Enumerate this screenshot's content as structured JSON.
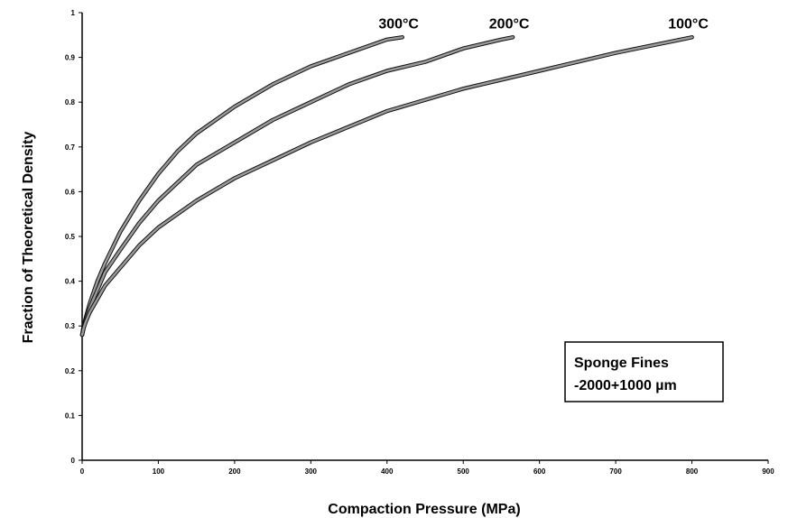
{
  "chart_data": {
    "type": "line",
    "title": "",
    "xlabel": "Compaction Pressure (MPa)",
    "ylabel": "Fraction of Theoretical Density",
    "xlim": [
      0,
      900
    ],
    "ylim": [
      0,
      1
    ],
    "xticks": [
      "0",
      "100",
      "200",
      "300",
      "400",
      "500",
      "600",
      "700",
      "800",
      "900"
    ],
    "yticks": [
      "0",
      "0.1",
      "0.2",
      "0.3",
      "0.4",
      "0.5",
      "0.6",
      "0.7",
      "0.8",
      "0.9",
      "1"
    ],
    "grid": false,
    "legend": "none",
    "annotation": [
      "Sponge Fines",
      "-2000+1000 µm"
    ],
    "series": [
      {
        "name": "300°C",
        "color": "#9a9a9a",
        "x": [
          0,
          2,
          5,
          10,
          20,
          30,
          50,
          75,
          100,
          125,
          150,
          200,
          250,
          300,
          350,
          400,
          420
        ],
        "y": [
          0.28,
          0.3,
          0.32,
          0.35,
          0.4,
          0.44,
          0.51,
          0.58,
          0.64,
          0.69,
          0.73,
          0.79,
          0.84,
          0.88,
          0.91,
          0.94,
          0.945
        ]
      },
      {
        "name": "200°C",
        "color": "#9a9a9a",
        "x": [
          0,
          2,
          5,
          10,
          20,
          30,
          50,
          75,
          100,
          150,
          200,
          250,
          300,
          350,
          400,
          450,
          500,
          550,
          565
        ],
        "y": [
          0.28,
          0.3,
          0.315,
          0.34,
          0.38,
          0.42,
          0.47,
          0.53,
          0.58,
          0.66,
          0.71,
          0.76,
          0.8,
          0.84,
          0.87,
          0.89,
          0.92,
          0.94,
          0.945
        ]
      },
      {
        "name": "100°C",
        "color": "#9a9a9a",
        "x": [
          0,
          2,
          5,
          10,
          20,
          30,
          50,
          75,
          100,
          150,
          200,
          250,
          300,
          400,
          500,
          600,
          700,
          800
        ],
        "y": [
          0.28,
          0.295,
          0.31,
          0.33,
          0.36,
          0.39,
          0.43,
          0.48,
          0.52,
          0.58,
          0.63,
          0.67,
          0.71,
          0.78,
          0.83,
          0.87,
          0.91,
          0.945
        ]
      }
    ]
  }
}
